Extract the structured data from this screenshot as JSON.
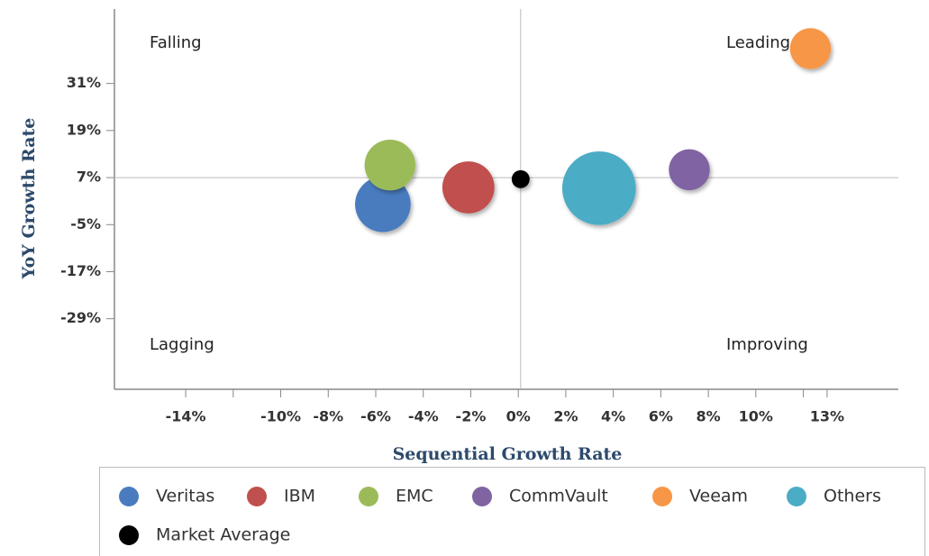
{
  "chart_data": {
    "type": "bubble",
    "x_label": "Sequential Growth Rate",
    "y_label": "YoY Growth Rate",
    "quadrant_labels": {
      "top_left": "Falling",
      "top_right": "Leading",
      "bottom_left": "Lagging",
      "bottom_right": "Improving"
    },
    "xlim": [
      -17,
      16
    ],
    "ylim": [
      -47,
      50
    ],
    "xticks": [
      {
        "value": -14,
        "label": "-14%"
      },
      {
        "value": -12,
        "label": null
      },
      {
        "value": -10,
        "label": "-10%"
      },
      {
        "value": -8,
        "label": "-8%"
      },
      {
        "value": -6,
        "label": "-6%"
      },
      {
        "value": -4,
        "label": "-4%"
      },
      {
        "value": -2,
        "label": "-2%"
      },
      {
        "value": 0,
        "label": "0%"
      },
      {
        "value": 2,
        "label": "2%"
      },
      {
        "value": 4,
        "label": "4%"
      },
      {
        "value": 6,
        "label": "6%"
      },
      {
        "value": 8,
        "label": "8%"
      },
      {
        "value": 10,
        "label": "10%"
      },
      {
        "value": 12,
        "label": null
      },
      {
        "value": 13,
        "label": "13%"
      }
    ],
    "yticks": [
      {
        "value": 31,
        "label": "31%"
      },
      {
        "value": 19,
        "label": "19%"
      },
      {
        "value": 7,
        "label": "7%"
      },
      {
        "value": -5,
        "label": "-5%"
      },
      {
        "value": -17,
        "label": "-17%"
      },
      {
        "value": -29,
        "label": "-29%"
      }
    ],
    "reference_lines": {
      "x": 0.1,
      "y": 7
    },
    "series": [
      {
        "name": "Veritas",
        "color": "#4a7bbf",
        "x": [
          -5.7
        ],
        "values": [
          0.2
        ],
        "sizes": [
          24
        ]
      },
      {
        "name": "IBM",
        "color": "#c0504d",
        "x": [
          -2.1
        ],
        "values": [
          4.5
        ],
        "sizes": [
          21
        ]
      },
      {
        "name": "EMC",
        "color": "#9bbb59",
        "x": [
          -5.4
        ],
        "values": [
          10.2
        ],
        "sizes": [
          20
        ]
      },
      {
        "name": "CommVault",
        "color": "#8064a2",
        "x": [
          7.2
        ],
        "values": [
          9
        ],
        "sizes": [
          13
        ]
      },
      {
        "name": "Veeam",
        "color": "#f79646",
        "x": [
          12.3
        ],
        "values": [
          39.9
        ],
        "sizes": [
          13
        ]
      },
      {
        "name": "Others",
        "color": "#4bacc6",
        "x": [
          3.4
        ],
        "values": [
          4.3
        ],
        "sizes": [
          42
        ]
      },
      {
        "name": "Market Average",
        "color": "#000000",
        "x": [
          0.1
        ],
        "values": [
          6.6
        ],
        "sizes": [
          2.5
        ]
      }
    ]
  }
}
